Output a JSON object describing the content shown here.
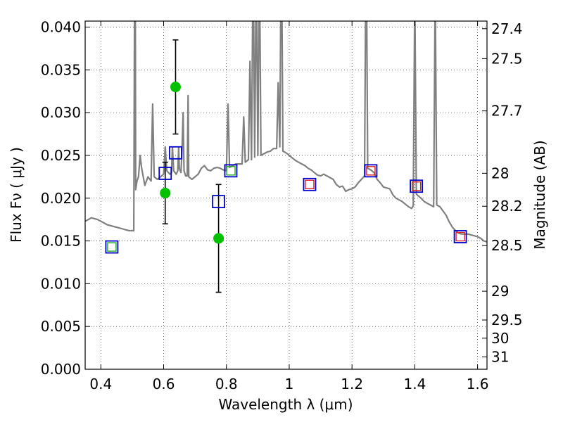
{
  "chart_data": {
    "type": "scatter",
    "xlabel": "Wavelength  λ (μm)",
    "ylabel": "Flux  Fν  ( μJy )",
    "ylabel_right": "Magnitude (AB)",
    "xlim": [
      0.35,
      1.63
    ],
    "ylim": [
      0.0,
      0.0407
    ],
    "xticks": [
      0.4,
      0.6,
      0.8,
      1.0,
      1.2,
      1.4,
      1.6
    ],
    "xtick_labels": [
      "0.4",
      "0.6",
      "0.8",
      "1",
      "1.2",
      "1.4",
      "1.6"
    ],
    "yticks": [
      0.0,
      0.005,
      0.01,
      0.015,
      0.02,
      0.025,
      0.03,
      0.035,
      0.04
    ],
    "ytick_labels": [
      "0.000",
      "0.005",
      "0.010",
      "0.015",
      "0.020",
      "0.025",
      "0.030",
      "0.035",
      "0.040"
    ],
    "right_ticks": [
      {
        "mag": 27.4,
        "label": "27.4"
      },
      {
        "mag": 27.5,
        "label": "27.5"
      },
      {
        "mag": 27.7,
        "label": "27.7"
      },
      {
        "mag": 28.0,
        "label": "28"
      },
      {
        "mag": 28.2,
        "label": "28.2"
      },
      {
        "mag": 28.5,
        "label": "28.5"
      },
      {
        "mag": 29.0,
        "label": "29"
      },
      {
        "mag": 29.5,
        "label": "29.5"
      },
      {
        "mag": 30.0,
        "label": "30"
      },
      {
        "mag": 31.0,
        "label": "31"
      }
    ],
    "grid": true,
    "colors": {
      "spectrum": "#808080",
      "observed": "#00c000",
      "model_box": "#0000cc",
      "inner_green": "#22aa22",
      "inner_red": "#dd2222",
      "errorbar": "#000000"
    },
    "series": [
      {
        "kind": "spectrum",
        "points": [
          [
            0.35,
            0.0173
          ],
          [
            0.36,
            0.0175
          ],
          [
            0.37,
            0.0177
          ],
          [
            0.38,
            0.0176
          ],
          [
            0.39,
            0.0175
          ],
          [
            0.4,
            0.0173
          ],
          [
            0.41,
            0.0171
          ],
          [
            0.42,
            0.0169
          ],
          [
            0.43,
            0.0168
          ],
          [
            0.44,
            0.0167
          ],
          [
            0.45,
            0.0166
          ],
          [
            0.46,
            0.0165
          ],
          [
            0.47,
            0.0164
          ],
          [
            0.48,
            0.0163
          ],
          [
            0.49,
            0.0162
          ],
          [
            0.5,
            0.0162
          ],
          [
            0.505,
            0.0162
          ],
          [
            0.507,
            0.038
          ],
          [
            0.509,
            0.06
          ],
          [
            0.511,
            0.021
          ],
          [
            0.515,
            0.022
          ],
          [
            0.52,
            0.0225
          ],
          [
            0.525,
            0.025
          ],
          [
            0.53,
            0.0235
          ],
          [
            0.54,
            0.0215
          ],
          [
            0.55,
            0.0225
          ],
          [
            0.56,
            0.022
          ],
          [
            0.565,
            0.031
          ],
          [
            0.57,
            0.0225
          ],
          [
            0.58,
            0.0222
          ],
          [
            0.59,
            0.0225
          ],
          [
            0.6,
            0.0228
          ],
          [
            0.605,
            0.026
          ],
          [
            0.61,
            0.0232
          ],
          [
            0.62,
            0.0228
          ],
          [
            0.625,
            0.023
          ],
          [
            0.628,
            0.026
          ],
          [
            0.632,
            0.0232
          ],
          [
            0.64,
            0.0228
          ],
          [
            0.645,
            0.0232
          ],
          [
            0.648,
            0.026
          ],
          [
            0.65,
            0.0235
          ],
          [
            0.655,
            0.023
          ],
          [
            0.658,
            0.025
          ],
          [
            0.662,
            0.03
          ],
          [
            0.665,
            0.0232
          ],
          [
            0.67,
            0.0226
          ],
          [
            0.675,
            0.0226
          ],
          [
            0.678,
            0.032
          ],
          [
            0.68,
            0.0225
          ],
          [
            0.69,
            0.0222
          ],
          [
            0.7,
            0.0225
          ],
          [
            0.71,
            0.0228
          ],
          [
            0.72,
            0.0235
          ],
          [
            0.73,
            0.0238
          ],
          [
            0.74,
            0.0233
          ],
          [
            0.75,
            0.0232
          ],
          [
            0.76,
            0.0235
          ],
          [
            0.77,
            0.0236
          ],
          [
            0.78,
            0.0235
          ],
          [
            0.79,
            0.0233
          ],
          [
            0.8,
            0.0232
          ],
          [
            0.805,
            0.031
          ],
          [
            0.81,
            0.0236
          ],
          [
            0.82,
            0.0238
          ],
          [
            0.83,
            0.024
          ],
          [
            0.84,
            0.024
          ],
          [
            0.85,
            0.024
          ],
          [
            0.855,
            0.0295
          ],
          [
            0.86,
            0.0242
          ],
          [
            0.87,
            0.0245
          ],
          [
            0.875,
            0.036
          ],
          [
            0.88,
            0.0245
          ],
          [
            0.885,
            0.049
          ],
          [
            0.89,
            0.0248
          ],
          [
            0.895,
            0.047
          ],
          [
            0.9,
            0.025
          ],
          [
            0.905,
            0.049
          ],
          [
            0.91,
            0.025
          ],
          [
            0.92,
            0.0252
          ],
          [
            0.93,
            0.0254
          ],
          [
            0.94,
            0.0255
          ],
          [
            0.95,
            0.0258
          ],
          [
            0.96,
            0.0258
          ],
          [
            0.965,
            0.0335
          ],
          [
            0.97,
            0.026
          ],
          [
            0.975,
            0.052
          ],
          [
            0.98,
            0.0255
          ],
          [
            0.99,
            0.0253
          ],
          [
            1.0,
            0.025
          ],
          [
            1.01,
            0.0247
          ],
          [
            1.02,
            0.0244
          ],
          [
            1.03,
            0.0242
          ],
          [
            1.04,
            0.024
          ],
          [
            1.05,
            0.0238
          ],
          [
            1.06,
            0.0235
          ],
          [
            1.07,
            0.0233
          ],
          [
            1.08,
            0.023
          ],
          [
            1.09,
            0.0227
          ],
          [
            1.1,
            0.0226
          ],
          [
            1.11,
            0.0228
          ],
          [
            1.12,
            0.0226
          ],
          [
            1.13,
            0.0224
          ],
          [
            1.14,
            0.0222
          ],
          [
            1.15,
            0.0216
          ],
          [
            1.16,
            0.0213
          ],
          [
            1.17,
            0.0214
          ],
          [
            1.18,
            0.0208
          ],
          [
            1.19,
            0.021
          ],
          [
            1.2,
            0.0211
          ],
          [
            1.21,
            0.0213
          ],
          [
            1.22,
            0.0218
          ],
          [
            1.23,
            0.0222
          ],
          [
            1.24,
            0.0226
          ],
          [
            1.245,
            0.052
          ],
          [
            1.25,
            0.0235
          ],
          [
            1.26,
            0.0233
          ],
          [
            1.27,
            0.023
          ],
          [
            1.28,
            0.0222
          ],
          [
            1.29,
            0.0218
          ],
          [
            1.3,
            0.0213
          ],
          [
            1.31,
            0.0212
          ],
          [
            1.32,
            0.0211
          ],
          [
            1.33,
            0.0204
          ],
          [
            1.34,
            0.02
          ],
          [
            1.35,
            0.0198
          ],
          [
            1.36,
            0.0196
          ],
          [
            1.37,
            0.0193
          ],
          [
            1.38,
            0.019
          ],
          [
            1.39,
            0.0188
          ],
          [
            1.395,
            0.0191
          ],
          [
            1.4,
            0.044
          ],
          [
            1.405,
            0.0205
          ],
          [
            1.41,
            0.0203
          ],
          [
            1.42,
            0.02
          ],
          [
            1.43,
            0.0196
          ],
          [
            1.44,
            0.0194
          ],
          [
            1.45,
            0.0192
          ],
          [
            1.46,
            0.019
          ],
          [
            1.465,
            0.045
          ],
          [
            1.47,
            0.0192
          ],
          [
            1.48,
            0.019
          ],
          [
            1.49,
            0.0185
          ],
          [
            1.5,
            0.018
          ],
          [
            1.51,
            0.0172
          ],
          [
            1.52,
            0.0166
          ],
          [
            1.53,
            0.0162
          ],
          [
            1.54,
            0.0159
          ],
          [
            1.55,
            0.0158
          ],
          [
            1.56,
            0.0158
          ],
          [
            1.57,
            0.0158
          ],
          [
            1.58,
            0.0157
          ],
          [
            1.59,
            0.0156
          ],
          [
            1.6,
            0.0155
          ],
          [
            1.61,
            0.0153
          ],
          [
            1.62,
            0.015
          ],
          [
            1.63,
            0.0149
          ]
        ]
      },
      {
        "kind": "observed",
        "points": [
          {
            "x": 0.638,
            "y": 0.033,
            "yerr": 0.0055
          },
          {
            "x": 0.605,
            "y": 0.0206,
            "yerr": 0.0036
          },
          {
            "x": 0.775,
            "y": 0.0153,
            "yerr": 0.0063
          }
        ]
      },
      {
        "kind": "model",
        "points": [
          {
            "x": 0.435,
            "y": 0.0143,
            "inner": "green"
          },
          {
            "x": 0.605,
            "y": 0.0229,
            "inner": "none"
          },
          {
            "x": 0.638,
            "y": 0.0253,
            "inner": "none"
          },
          {
            "x": 0.775,
            "y": 0.0196,
            "inner": "none"
          },
          {
            "x": 0.814,
            "y": 0.0232,
            "inner": "green"
          },
          {
            "x": 1.065,
            "y": 0.0216,
            "inner": "red"
          },
          {
            "x": 1.26,
            "y": 0.0232,
            "inner": "red"
          },
          {
            "x": 1.405,
            "y": 0.0214,
            "inner": "red"
          },
          {
            "x": 1.545,
            "y": 0.0155,
            "inner": "red"
          }
        ]
      }
    ]
  }
}
